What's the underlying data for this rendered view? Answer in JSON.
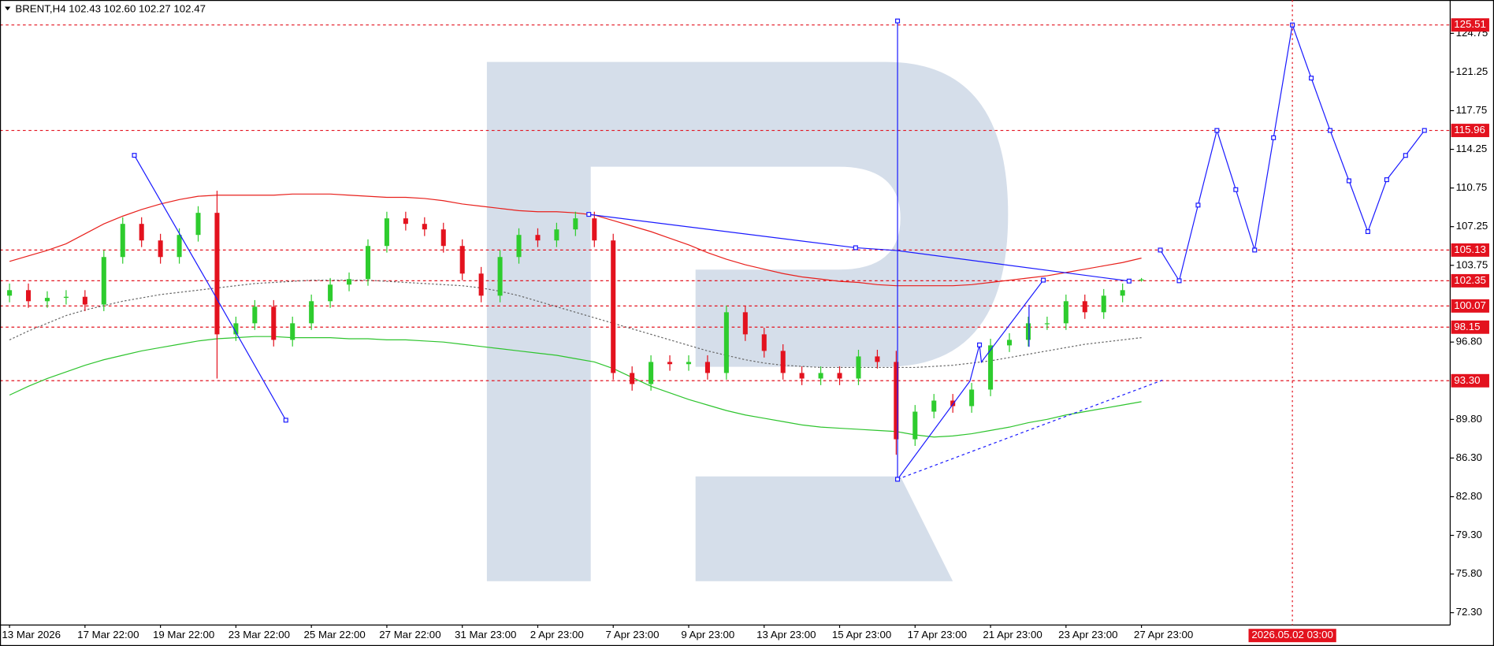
{
  "chart_data": {
    "type": "candlestick",
    "title": "BRENT,H4  102.43 102.60 102.27 102.47",
    "categories": [
      "13 Mar 2026",
      null,
      null,
      null,
      "17 Mar 22:00",
      null,
      null,
      null,
      "19 Mar 22:00",
      null,
      null,
      null,
      "23 Mar 22:00",
      null,
      null,
      null,
      "25 Mar 22:00",
      null,
      null,
      null,
      "27 Mar 22:00",
      null,
      null,
      null,
      "31 Mar 23:00",
      null,
      null,
      null,
      "2 Apr 23:00",
      null,
      null,
      null,
      "7 Apr 23:00",
      null,
      null,
      null,
      "9 Apr 23:00",
      null,
      null,
      null,
      "13 Apr 23:00",
      null,
      null,
      null,
      "15 Apr 23:00",
      null,
      null,
      null,
      "17 Apr 23:00",
      null,
      null,
      null,
      "21 Apr 23:00",
      null,
      null,
      null,
      "23 Apr 23:00",
      null,
      null,
      null,
      "27 Apr 23:00",
      null,
      null,
      null,
      null,
      null,
      null,
      null,
      "2026.05.02 03:00",
      null,
      null,
      null,
      null,
      null,
      null,
      null,
      null
    ],
    "crosshair_category": 68,
    "open": [
      101.0,
      101.5,
      100.5,
      100.8,
      100.9,
      100.2,
      104.5,
      107.5,
      106,
      104.5,
      106.5,
      108.5,
      97.5,
      98.5,
      100,
      97,
      98.5,
      100.5,
      102,
      102.5,
      105.5,
      108,
      107.5,
      107,
      105.5,
      103,
      101,
      104.5,
      106.5,
      106,
      107,
      108,
      106,
      94,
      93,
      95,
      94.8,
      95,
      94,
      99.5,
      97.5,
      96,
      94,
      93.5,
      94,
      93.5,
      95.5,
      95,
      88,
      90.5,
      91.5,
      91,
      92.5,
      96.5,
      97,
      98.5,
      98.5,
      100.5,
      99.5,
      101,
      102.43,
      null,
      null,
      null,
      null,
      null,
      null,
      null,
      null,
      null,
      null,
      null,
      null,
      null,
      null,
      null,
      null
    ],
    "high": [
      102.1,
      102.1,
      101.4,
      101.5,
      101.5,
      105.1,
      108.1,
      108.1,
      106.6,
      107.1,
      109.1,
      110.5,
      99.1,
      100.6,
      100.6,
      99.1,
      101.1,
      102.6,
      103.1,
      106.1,
      108.6,
      108.6,
      108.1,
      107.6,
      106.1,
      103.6,
      105.1,
      107.1,
      107.1,
      107.6,
      108.6,
      108.6,
      106.6,
      94.6,
      95.6,
      95.6,
      95.6,
      95.6,
      100.1,
      100.1,
      98.1,
      96.6,
      94.6,
      94.6,
      94.6,
      96.1,
      96.1,
      96,
      91.1,
      92.1,
      92.1,
      93.1,
      97.1,
      97.6,
      99.1,
      99.1,
      101.1,
      101.1,
      101.6,
      102.1,
      102.6,
      null,
      null,
      null,
      null,
      null,
      null,
      null,
      null,
      null,
      null,
      null,
      null,
      null,
      null,
      null,
      null
    ],
    "low": [
      100.4,
      99.9,
      99.9,
      100.2,
      99.6,
      99.6,
      103.9,
      105.4,
      103.9,
      103.9,
      105.9,
      93.5,
      96.9,
      97.9,
      96.4,
      96.4,
      97.9,
      99.9,
      101.4,
      101.9,
      104.9,
      106.9,
      106.4,
      104.9,
      102.4,
      100.4,
      100.4,
      103.9,
      105.4,
      105.4,
      106.4,
      105.4,
      93.4,
      92.4,
      92.4,
      94.2,
      94.2,
      93.4,
      93.4,
      96.9,
      95.4,
      93.4,
      92.9,
      92.9,
      92.9,
      92.9,
      94.4,
      86.6,
      87.4,
      89.9,
      90.4,
      90.4,
      91.9,
      95.9,
      96.4,
      97.9,
      97.9,
      98.9,
      98.9,
      100.4,
      102.27,
      null,
      null,
      null,
      null,
      null,
      null,
      null,
      null,
      null,
      null,
      null,
      null,
      null,
      null,
      null,
      null
    ],
    "close": [
      101.5,
      100.5,
      100.8,
      100.9,
      100.2,
      104.5,
      107.5,
      106,
      104.5,
      106.5,
      108.5,
      97.5,
      98.5,
      100,
      97,
      98.5,
      100.5,
      102,
      102.5,
      105.5,
      108,
      107.5,
      107,
      105.5,
      103,
      101,
      104.5,
      106.5,
      106,
      107,
      108,
      106,
      94,
      93,
      95,
      94.8,
      95,
      94,
      99.5,
      97.5,
      96,
      94,
      93.5,
      94,
      93.5,
      95.5,
      95,
      88,
      90.5,
      91.5,
      91,
      92.5,
      96.5,
      97,
      98.5,
      98.5,
      100.5,
      99.5,
      101,
      101.5,
      102.47,
      null,
      null,
      null,
      null,
      null,
      null,
      null,
      null,
      null,
      null,
      null,
      null,
      null,
      null,
      null,
      null
    ],
    "up_color": "#2ecc2e",
    "down_color": "#e3121e",
    "lines": [
      {
        "color": "#e8201c",
        "dash": false,
        "values": [
          104.1,
          104.6,
          105.1,
          105.7,
          106.6,
          107.5,
          108.2,
          108.8,
          109.3,
          109.7,
          110.0,
          110.1,
          110.1,
          110.1,
          110.1,
          110.2,
          110.2,
          110.2,
          110.1,
          110.0,
          109.9,
          109.9,
          109.8,
          109.6,
          109.3,
          109.1,
          108.9,
          108.7,
          108.6,
          108.6,
          108.5,
          108.3,
          107.8,
          107.3,
          106.8,
          106.2,
          105.6,
          104.9,
          104.3,
          103.8,
          103.4,
          103.0,
          102.7,
          102.5,
          102.3,
          102.2,
          102.0,
          101.9,
          101.9,
          101.9,
          101.9,
          102.0,
          102.2,
          102.4,
          102.6,
          102.8,
          103.1,
          103.4,
          103.7,
          104.0,
          104.4,
          null,
          null,
          null,
          null,
          null,
          null,
          null,
          null,
          null,
          null,
          null,
          null,
          null,
          null,
          null,
          null
        ]
      },
      {
        "color": "#2ec42e",
        "dash": false,
        "values": [
          92.0,
          92.8,
          93.5,
          94.1,
          94.7,
          95.2,
          95.6,
          96.0,
          96.3,
          96.6,
          96.9,
          97.1,
          97.2,
          97.3,
          97.3,
          97.2,
          97.2,
          97.2,
          97.1,
          97.1,
          97.0,
          97.0,
          96.9,
          96.8,
          96.6,
          96.4,
          96.2,
          96.0,
          95.8,
          95.6,
          95.3,
          95.0,
          94.4,
          93.6,
          92.8,
          92.2,
          91.6,
          91.1,
          90.6,
          90.2,
          89.9,
          89.6,
          89.3,
          89.1,
          89.0,
          88.9,
          88.8,
          88.7,
          88.4,
          88.2,
          88.3,
          88.5,
          88.8,
          89.1,
          89.5,
          89.8,
          90.2,
          90.5,
          90.8,
          91.1,
          91.4,
          null,
          null,
          null,
          null,
          null,
          null,
          null,
          null,
          null,
          null,
          null,
          null,
          null,
          null,
          null,
          null
        ]
      },
      {
        "color": "#666666",
        "dash": true,
        "values": [
          97.0,
          97.8,
          98.5,
          99.2,
          99.7,
          100.1,
          100.5,
          100.8,
          101.1,
          101.3,
          101.5,
          101.7,
          101.9,
          102.1,
          102.2,
          102.3,
          102.4,
          102.4,
          102.4,
          102.4,
          102.3,
          102.2,
          102.1,
          102.0,
          101.9,
          101.7,
          101.4,
          101.0,
          100.5,
          100.0,
          99.5,
          99.0,
          98.5,
          98.0,
          97.5,
          97.0,
          96.5,
          96.0,
          95.6,
          95.2,
          94.9,
          94.7,
          94.6,
          94.5,
          94.5,
          94.5,
          94.5,
          94.5,
          94.5,
          94.6,
          94.7,
          94.9,
          95.1,
          95.4,
          95.7,
          96.0,
          96.3,
          96.6,
          96.8,
          97.0,
          97.2,
          null,
          null,
          null,
          null,
          null,
          null,
          null,
          null,
          null,
          null,
          null,
          null,
          null,
          null,
          null,
          null
        ]
      }
    ],
    "forecast": {
      "color": "#1a1aff",
      "values": [
        null,
        null,
        null,
        null,
        null,
        null,
        null,
        null,
        null,
        null,
        null,
        null,
        null,
        null,
        null,
        null,
        null,
        null,
        null,
        null,
        null,
        null,
        null,
        null,
        null,
        null,
        null,
        null,
        null,
        null,
        null,
        null,
        null,
        null,
        null,
        null,
        null,
        null,
        null,
        null,
        null,
        null,
        null,
        null,
        null,
        null,
        null,
        null,
        null,
        null,
        null,
        null,
        null,
        null,
        null,
        null,
        null,
        null,
        null,
        null,
        null,
        105.13,
        102.35,
        109.2,
        115.96,
        110.6,
        105.13,
        115.3,
        125.51,
        120.7,
        115.96,
        111.4,
        106.8,
        111.5,
        113.7,
        115.96,
        null
      ]
    },
    "levels": [
      125.51,
      115.96,
      105.13,
      102.35,
      100.07,
      98.15,
      {
        "value": 93.3,
        "label": "93.30"
      }
    ],
    "level_color": "#e3121e",
    "ylim": [
      71.18,
      127.77
    ],
    "yticks": [
      124.75,
      121.25,
      117.75,
      114.25,
      110.75,
      107.25,
      103.75,
      {
        "value": 96.8,
        "label": "96.80"
      },
      {
        "value": 89.8,
        "label": "89.80"
      },
      {
        "value": 86.3,
        "label": "86.30"
      },
      {
        "value": 82.8,
        "label": "82.80"
      },
      {
        "value": 79.3,
        "label": "79.30"
      },
      {
        "value": 75.8,
        "label": "75.80"
      },
      {
        "value": 72.3,
        "label": "72.30"
      }
    ]
  }
}
